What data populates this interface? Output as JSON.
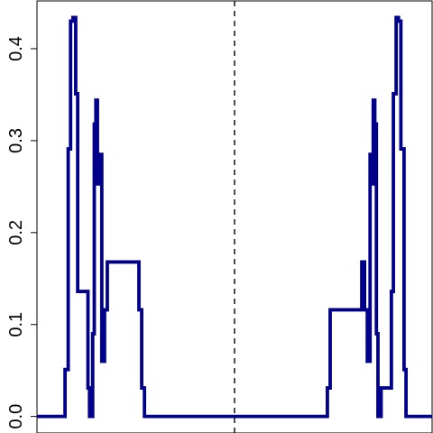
{
  "chart_data": {
    "type": "line",
    "title": "",
    "xlabel": "",
    "ylabel": "",
    "xlim": [
      0,
      100
    ],
    "ylim": [
      -0.018,
      0.452
    ],
    "y_ticks": [
      {
        "value": 0.0,
        "label": "0.0"
      },
      {
        "value": 0.1,
        "label": "0.1"
      },
      {
        "value": 0.2,
        "label": "0.2"
      },
      {
        "value": 0.3,
        "label": "0.3"
      },
      {
        "value": 0.4,
        "label": "0.4"
      }
    ],
    "x_ticks": [],
    "grid": false,
    "reference_line": {
      "x": 50,
      "style": "dashed",
      "color": "#000000"
    },
    "series": [
      {
        "color": "#00008B",
        "step": true,
        "x": [
          0,
          5,
          5.5,
          6,
          6.6,
          7.1,
          7.9,
          8.5,
          9.1,
          9.8,
          10.3,
          12.9,
          13.3,
          13.7,
          14.1,
          14.5,
          14.9,
          15.3,
          15.7,
          16.4,
          17.1,
          17.8,
          25.8,
          26.5,
          27.2,
          32,
          32.8,
          33.4,
          34,
          34.6,
          35.2,
          35.6,
          36.2,
          40.3,
          40.7,
          41.1,
          42.2,
          43.1,
          43.7,
          44.3,
          45.0,
          45.6,
          46.2,
          46.9,
          47.9,
          48.8,
          49.5,
          50.4,
          51.2,
          52.3,
          53.4,
          53.6,
          54
        ],
        "y": [
          0,
          0,
          0,
          0,
          0,
          0.051,
          0.291,
          0.43,
          0.434,
          0.351,
          0.136,
          0.031,
          0,
          0,
          0.09,
          0.318,
          0.344,
          0.253,
          0.285,
          0.06,
          0.116,
          0.168,
          0.116,
          0.031,
          0,
          0,
          0,
          0,
          0,
          0,
          0,
          0,
          0,
          0,
          0,
          0,
          0,
          0,
          0,
          0,
          0,
          0,
          0,
          0,
          0,
          0,
          0,
          0,
          0,
          0,
          0,
          0,
          0
        ]
      }
    ]
  },
  "axes": {
    "y_tick_labels": [
      "0.0",
      "0.1",
      "0.2",
      "0.3",
      "0.4"
    ]
  }
}
